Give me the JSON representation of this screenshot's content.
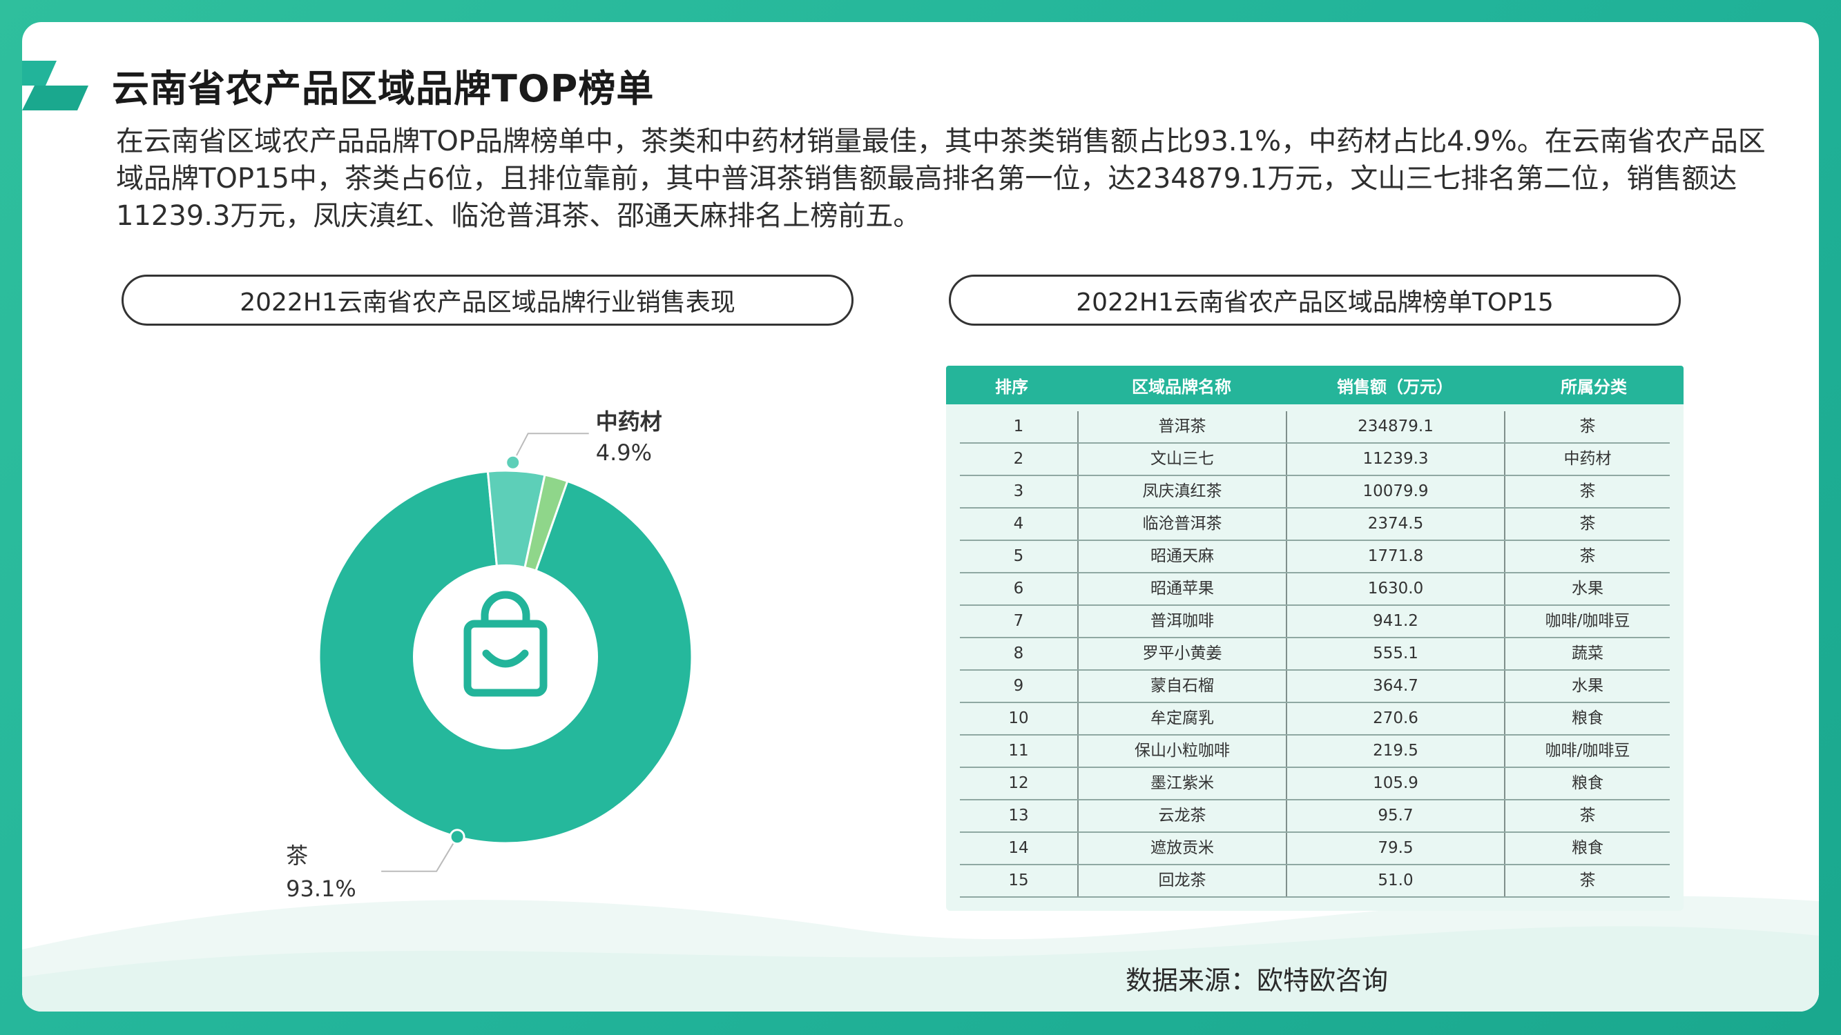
{
  "title": "云南省农产品区域品牌TOP榜单",
  "intro": "在云南省区域农产品品牌TOP品牌榜单中，茶类和中药材销量最佳，其中茶类销售额占比93.1%，中药材占比4.9%。在云南省农产品区域品牌TOP15中，茶类占6位，且排位靠前，其中普洱茶销售额最高排名第一位，达234879.1万元，文山三七排名第二位，销售额达11239.3万元，凤庆滇红、临沧普洱茶、邵通天麻排名上榜前五。",
  "pill_left": "2022H1云南省农产品区域品牌行业销售表现",
  "pill_right": "2022H1云南省农产品区域品牌榜单TOP15",
  "source": "数据来源：欧特欧咨询",
  "colors": {
    "tea": "#25b89c",
    "herb": "#5dcfb8",
    "other": "#8fd68a",
    "accent": "#22b49a",
    "icon": "#22b49a"
  },
  "icon": "shopping-bag-icon",
  "chart_data": [
    {
      "type": "pie",
      "title": "2022H1云南省农产品区域品牌行业销售表现",
      "slices": [
        {
          "name": "茶",
          "value": 93.1,
          "label": "93.1%"
        },
        {
          "name": "中药材",
          "value": 4.9,
          "label": "4.9%"
        },
        {
          "name": "",
          "value": 2.0,
          "label": ""
        }
      ]
    },
    {
      "type": "table",
      "title": "2022H1云南省农产品区域品牌榜单TOP15",
      "columns": [
        "排序",
        "区域品牌名称",
        "销售额（万元）",
        "所属分类"
      ],
      "rows": [
        [
          "1",
          "普洱茶",
          "234879.1",
          "茶"
        ],
        [
          "2",
          "文山三七",
          "11239.3",
          "中药材"
        ],
        [
          "3",
          "凤庆滇红茶",
          "10079.9",
          "茶"
        ],
        [
          "4",
          "临沧普洱茶",
          "2374.5",
          "茶"
        ],
        [
          "5",
          "昭通天麻",
          "1771.8",
          "茶"
        ],
        [
          "6",
          "昭通苹果",
          "1630.0",
          "水果"
        ],
        [
          "7",
          "普洱咖啡",
          "941.2",
          "咖啡/咖啡豆"
        ],
        [
          "8",
          "罗平小黄姜",
          "555.1",
          "蔬菜"
        ],
        [
          "9",
          "蒙自石榴",
          "364.7",
          "水果"
        ],
        [
          "10",
          "牟定腐乳",
          "270.6",
          "粮食"
        ],
        [
          "11",
          "保山小粒咖啡",
          "219.5",
          "咖啡/咖啡豆"
        ],
        [
          "12",
          "墨江紫米",
          "105.9",
          "粮食"
        ],
        [
          "13",
          "云龙茶",
          "95.7",
          "茶"
        ],
        [
          "14",
          "遮放贡米",
          "79.5",
          "粮食"
        ],
        [
          "15",
          "回龙茶",
          "51.0",
          "茶"
        ]
      ]
    }
  ]
}
